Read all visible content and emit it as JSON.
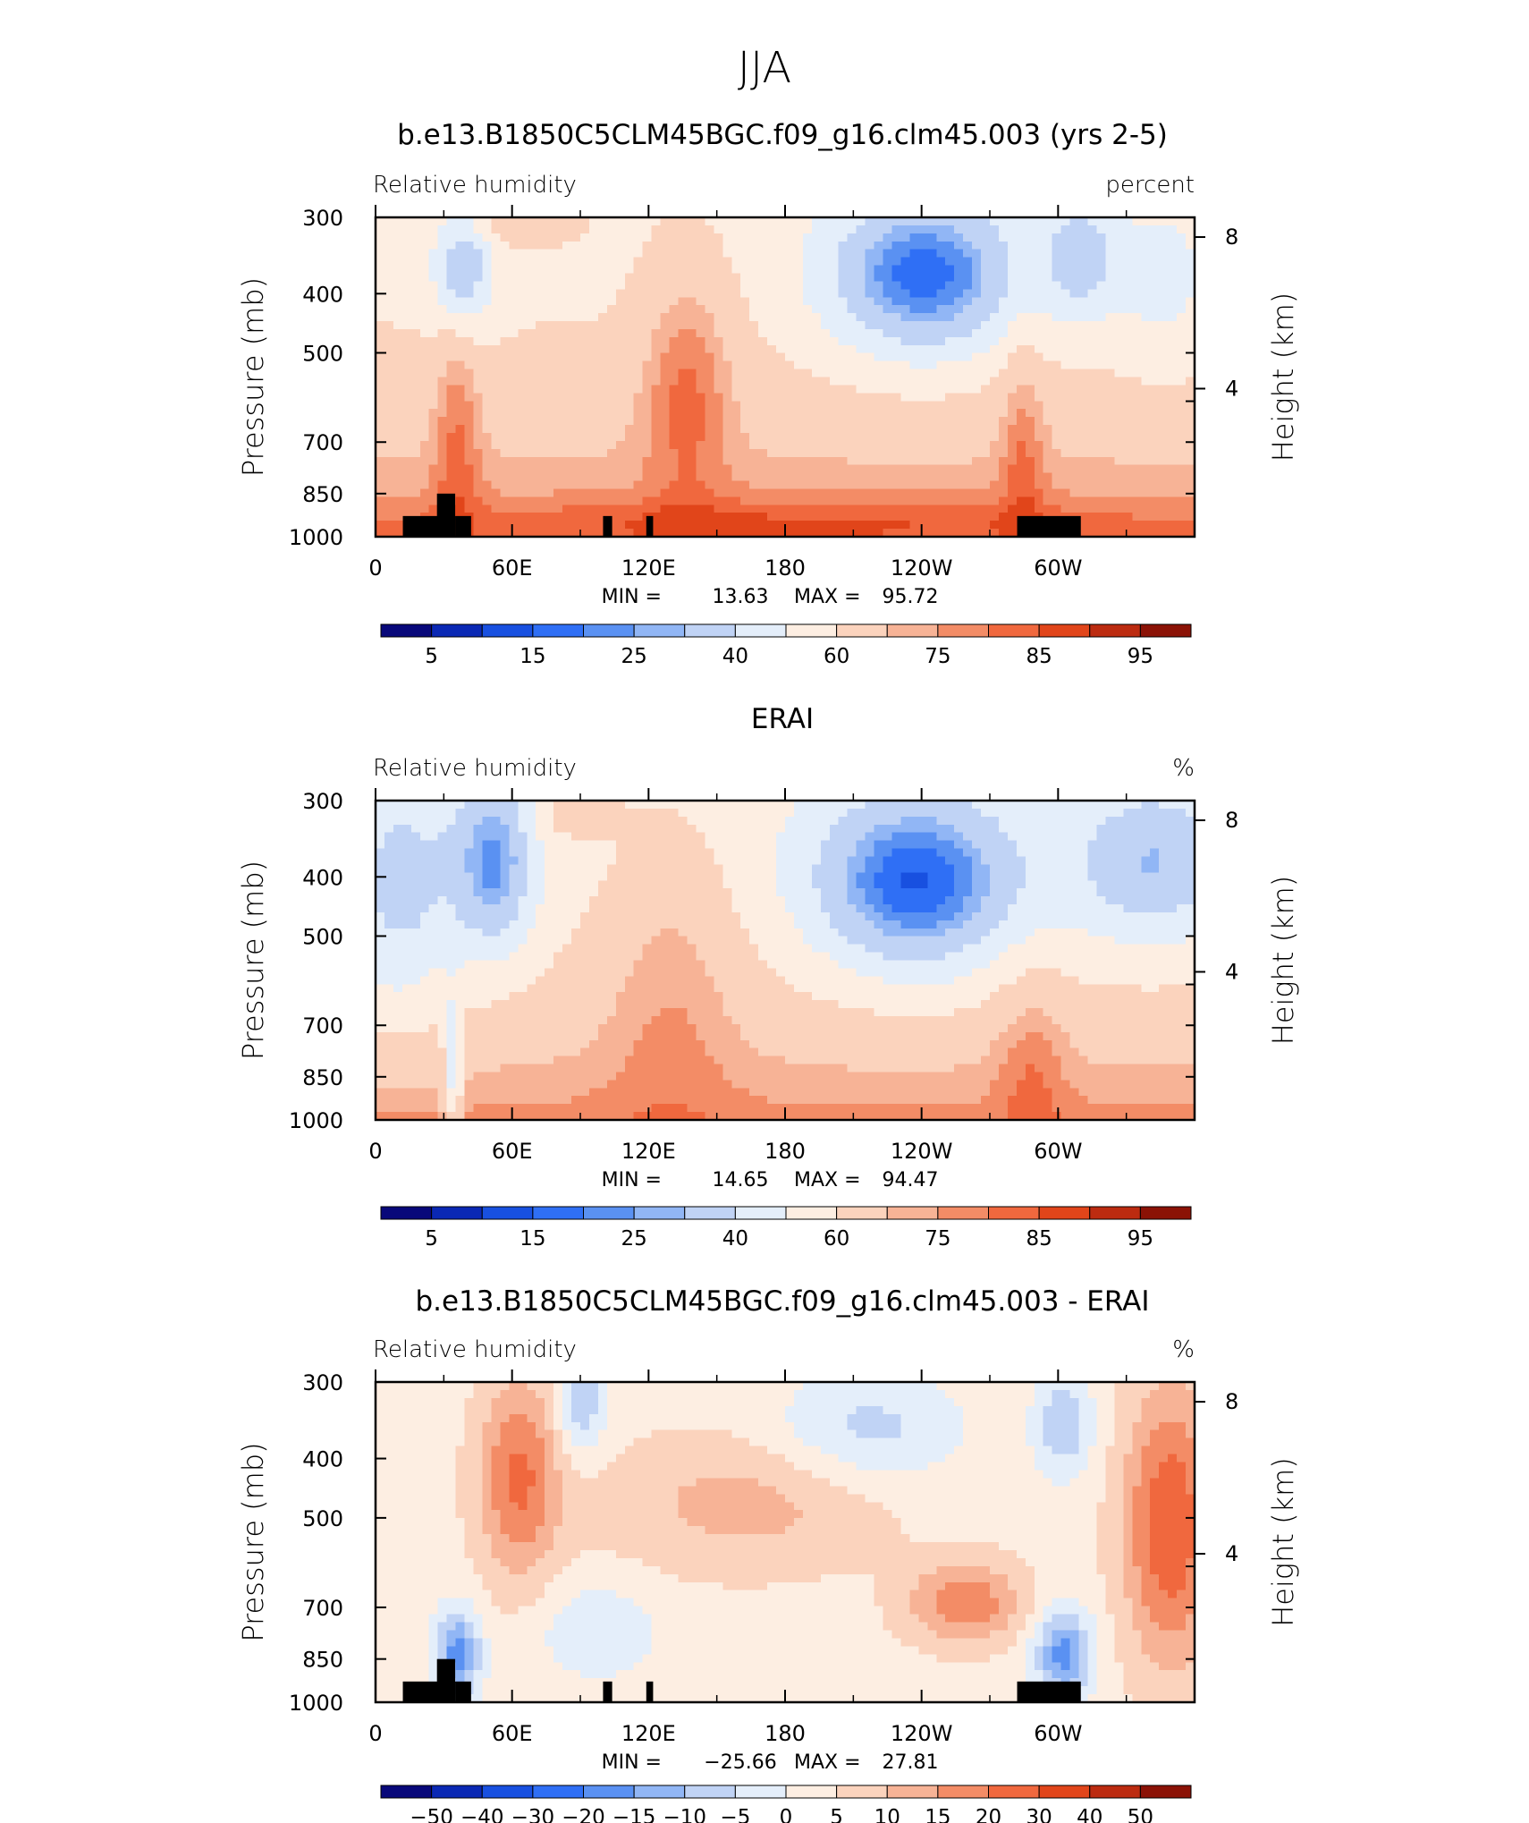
{
  "figure": {
    "season": "JJA"
  },
  "colors": {
    "abs": [
      "#08087a",
      "#0a28b4",
      "#1850e0",
      "#2f6ff5",
      "#5a91f2",
      "#91b6f5",
      "#c0d3f5",
      "#e4eefa",
      "#fdeee2",
      "#fbd3bd",
      "#f7b396",
      "#f38c66",
      "#f0683e",
      "#e1451a",
      "#bc2b10",
      "#8b1206"
    ],
    "diff": [
      "#08087a",
      "#0a28b4",
      "#1850e0",
      "#2f6ff5",
      "#5a91f2",
      "#91b6f5",
      "#c0d3f5",
      "#e4eefa",
      "#fdeee2",
      "#fbd3bd",
      "#f7b396",
      "#f38c66",
      "#f0683e",
      "#e1451a",
      "#bc2b10",
      "#8b1206"
    ]
  },
  "chart_data": [
    {
      "type": "heatmap",
      "title": "b.e13.B1850C5CLM45BGC.f09_g16.clm45.003 (yrs 2-5)",
      "left_label": "Relative humidity",
      "right_label": "percent",
      "ylabel": "Pressure (mb)",
      "ylabel_right": "Height (km)",
      "yticks": [
        "300",
        "400",
        "500",
        "700",
        "850",
        "1000"
      ],
      "yticks_right": [
        "8",
        "4"
      ],
      "xticks": [
        "0",
        "60E",
        "120E",
        "180",
        "120W",
        "60W"
      ],
      "stats": {
        "min_label": "MIN =",
        "min": "13.63",
        "max_label": "MAX =",
        "max": "95.72"
      },
      "colorbar_labels": [
        "5",
        "15",
        "25",
        "40",
        "60",
        "75",
        "85",
        "95"
      ],
      "value_range": [
        13.63,
        95.72
      ],
      "field": "model"
    },
    {
      "type": "heatmap",
      "title": "ERAI",
      "left_label": "Relative humidity",
      "right_label": "%",
      "ylabel": "Pressure (mb)",
      "ylabel_right": "Height (km)",
      "yticks": [
        "300",
        "400",
        "500",
        "700",
        "850",
        "1000"
      ],
      "yticks_right": [
        "8",
        "4"
      ],
      "xticks": [
        "0",
        "60E",
        "120E",
        "180",
        "120W",
        "60W"
      ],
      "stats": {
        "min_label": "MIN =",
        "min": "14.65",
        "max_label": "MAX =",
        "max": "94.47"
      },
      "colorbar_labels": [
        "5",
        "15",
        "25",
        "40",
        "60",
        "75",
        "85",
        "95"
      ],
      "value_range": [
        14.65,
        94.47
      ],
      "field": "erai"
    },
    {
      "type": "heatmap",
      "title": "b.e13.B1850C5CLM45BGC.f09_g16.clm45.003 - ERAI",
      "left_label": "Relative humidity",
      "right_label": "%",
      "ylabel": "Pressure (mb)",
      "ylabel_right": "Height (km)",
      "yticks": [
        "300",
        "400",
        "500",
        "700",
        "850",
        "1000"
      ],
      "yticks_right": [
        "8",
        "4"
      ],
      "xticks": [
        "0",
        "60E",
        "120E",
        "180",
        "120W",
        "60W"
      ],
      "stats": {
        "min_label": "MIN =",
        "min": "−25.66",
        "max_label": "MAX =",
        "max": "27.81"
      },
      "colorbar_labels": [
        "−50",
        "−40",
        "−30",
        "−20",
        "−15",
        "−10",
        "−5",
        "0",
        "5",
        "10",
        "15",
        "20",
        "30",
        "40",
        "50"
      ],
      "value_range": [
        -25.66,
        27.81
      ],
      "field": "diff"
    }
  ]
}
